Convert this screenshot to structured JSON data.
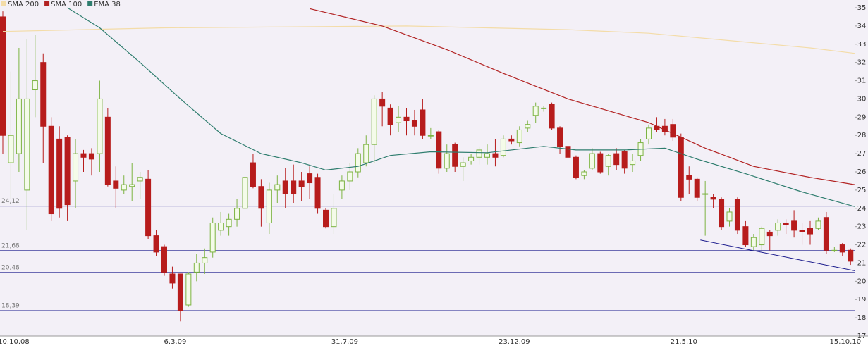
{
  "chart_data": {
    "type": "candlestick",
    "categories": [
      null,
      "10.10.08",
      null,
      null,
      null,
      null,
      null,
      null,
      null,
      null,
      null,
      null,
      null,
      null,
      null,
      null,
      null,
      null,
      null,
      null,
      null,
      "6.3.09",
      null,
      null,
      null,
      null,
      null,
      null,
      null,
      null,
      null,
      null,
      null,
      null,
      null,
      null,
      null,
      null,
      null,
      null,
      null,
      null,
      "31.7.09",
      null,
      null,
      null,
      null,
      null,
      null,
      null,
      null,
      null,
      null,
      null,
      null,
      null,
      null,
      null,
      null,
      null,
      null,
      null,
      null,
      "23.12.09",
      null,
      null,
      null,
      null,
      null,
      null,
      null,
      null,
      null,
      null,
      null,
      null,
      null,
      null,
      null,
      null,
      null,
      null,
      null,
      null,
      "21.5.10",
      null,
      null,
      null,
      null,
      null,
      null,
      null,
      null,
      null,
      null,
      null,
      null,
      null,
      null,
      null,
      null,
      null,
      null,
      null,
      "15.10.10",
      null
    ],
    "open": [
      34.5,
      26.5,
      27.0,
      25.0,
      30.5,
      32.0,
      28.5,
      27.8,
      27.9,
      25.5,
      27.0,
      27.0,
      27.0,
      29.0,
      25.5,
      25.0,
      25.2,
      25.5,
      25.6,
      22.5,
      21.9,
      20.4,
      20.4,
      18.7,
      20.5,
      21.0,
      21.6,
      22.8,
      23.0,
      23.4,
      24.0,
      26.5,
      25.2,
      23.2,
      25.0,
      25.5,
      25.5,
      25.5,
      25.9,
      25.7,
      23.9,
      23.0,
      25.0,
      25.5,
      26.0,
      26.5,
      27.5,
      30.0,
      29.5,
      28.7,
      29.0,
      28.8,
      29.4,
      28.0,
      28.2,
      26.2,
      27.5,
      26.3,
      26.6,
      26.8,
      26.8,
      27.0,
      26.9,
      27.8,
      27.6,
      28.4,
      29.1,
      29.5,
      29.7,
      28.4,
      27.4,
      26.8,
      25.8,
      26.2,
      27.0,
      26.3,
      27.0,
      27.1,
      26.4,
      26.9,
      27.8,
      28.5,
      28.5,
      28.6,
      27.9,
      25.8,
      25.6,
      24.8,
      24.6,
      24.5,
      23.3,
      24.5,
      23.0,
      21.9,
      22.0,
      22.7,
      22.8,
      23.2,
      23.3,
      22.8,
      22.9,
      22.9,
      23.5,
      21.7,
      22.0,
      21.7
    ],
    "high": [
      34.8,
      31.5,
      32.8,
      33.3,
      33.5,
      32.5,
      29.0,
      28.5,
      28.0,
      27.8,
      27.2,
      27.3,
      31.0,
      29.5,
      26.3,
      25.8,
      26.5,
      26.0,
      26.1,
      22.8,
      22.0,
      20.8,
      20.4,
      20.5,
      21.5,
      21.8,
      23.5,
      23.8,
      23.7,
      24.5,
      26.4,
      27.0,
      25.6,
      25.4,
      25.8,
      26.2,
      26.4,
      26.0,
      26.3,
      25.9,
      24.0,
      24.8,
      25.8,
      26.5,
      27.3,
      28.0,
      30.2,
      30.4,
      29.7,
      29.6,
      29.5,
      29.4,
      30.0,
      28.4,
      28.3,
      27.5,
      27.6,
      26.8,
      27.0,
      27.4,
      27.5,
      27.8,
      28.0,
      28.0,
      28.5,
      28.8,
      29.8,
      29.6,
      29.8,
      28.5,
      27.6,
      26.9,
      26.1,
      27.3,
      27.1,
      27.0,
      27.3,
      27.2,
      27.0,
      27.8,
      28.6,
      29.0,
      28.9,
      28.9,
      28.1,
      26.3,
      25.7,
      25.5,
      24.8,
      24.6,
      24.0,
      24.6,
      23.3,
      22.6,
      23.0,
      22.8,
      23.4,
      23.4,
      23.9,
      23.2,
      23.3,
      23.5,
      23.8,
      21.9,
      22.1,
      21.8
    ],
    "low": [
      27.0,
      24.5,
      26.0,
      22.8,
      29.0,
      26.5,
      23.3,
      23.5,
      23.3,
      24.0,
      26.0,
      25.8,
      26.0,
      25.2,
      24.0,
      24.8,
      24.4,
      24.5,
      22.3,
      21.4,
      20.3,
      19.6,
      17.8,
      18.6,
      20.0,
      20.4,
      21.3,
      22.5,
      22.5,
      23.0,
      23.5,
      25.1,
      23.0,
      22.6,
      24.3,
      24.0,
      24.3,
      24.4,
      24.5,
      23.7,
      22.9,
      22.6,
      24.5,
      25.0,
      25.7,
      26.3,
      26.5,
      28.5,
      28.0,
      28.2,
      28.0,
      28.0,
      27.8,
      27.8,
      25.9,
      26.0,
      26.0,
      25.5,
      26.4,
      26.4,
      26.4,
      26.3,
      26.8,
      27.5,
      27.4,
      28.2,
      28.7,
      29.3,
      28.3,
      27.0,
      26.5,
      25.6,
      25.6,
      26.1,
      25.9,
      25.8,
      26.1,
      25.9,
      26.0,
      26.6,
      27.5,
      28.2,
      28.0,
      27.7,
      24.4,
      24.8,
      24.4,
      22.5,
      24.0,
      22.8,
      23.0,
      22.6,
      21.9,
      21.7,
      21.7,
      21.7,
      22.5,
      22.6,
      22.4,
      22.0,
      22.0,
      22.8,
      21.5,
      21.6,
      21.4,
      20.9
    ],
    "close": [
      28.0,
      28.0,
      30.0,
      30.0,
      31.0,
      28.5,
      23.7,
      24.0,
      24.2,
      27.0,
      26.8,
      26.7,
      30.0,
      25.3,
      25.1,
      25.3,
      25.3,
      25.7,
      22.5,
      21.6,
      20.5,
      19.9,
      18.4,
      20.4,
      21.0,
      21.3,
      23.2,
      23.2,
      23.4,
      24.0,
      25.7,
      25.2,
      24.0,
      25.0,
      25.3,
      24.8,
      24.8,
      25.2,
      25.4,
      24.0,
      23.0,
      24.0,
      25.5,
      26.0,
      27.0,
      27.5,
      30.0,
      29.6,
      28.6,
      29.0,
      28.8,
      28.5,
      28.0,
      28.0,
      26.2,
      27.0,
      26.3,
      26.5,
      26.8,
      27.2,
      27.0,
      26.8,
      27.8,
      27.7,
      28.3,
      28.6,
      29.6,
      29.5,
      28.4,
      27.4,
      26.8,
      25.7,
      26.0,
      27.0,
      26.0,
      26.9,
      26.4,
      26.2,
      26.6,
      27.6,
      28.4,
      28.3,
      28.2,
      27.9,
      24.6,
      25.6,
      24.6,
      24.8,
      24.5,
      23.0,
      23.8,
      22.8,
      22.0,
      22.4,
      22.9,
      22.5,
      23.2,
      23.1,
      22.8,
      22.7,
      22.6,
      23.3,
      21.7,
      21.7,
      21.6,
      21.1
    ],
    "up_color": "#7cb342",
    "down_color": "#b71c1c",
    "series": [
      {
        "name": "SMA 200",
        "color": "#f3dca8",
        "x": [
          0,
          10,
          20,
          35,
          50,
          60,
          70,
          80,
          90,
          100,
          105.5
        ],
        "values": [
          33.7,
          33.8,
          33.9,
          33.95,
          34.0,
          33.9,
          33.8,
          33.6,
          33.2,
          32.8,
          32.5
        ]
      },
      {
        "name": "SMA 100",
        "color": "#b22222",
        "x": [
          38,
          47,
          55,
          62,
          70,
          80,
          87,
          93,
          100,
          105.5
        ],
        "values": [
          34.95,
          34.0,
          32.7,
          31.4,
          30.0,
          28.7,
          27.3,
          26.3,
          25.7,
          25.3
        ]
      },
      {
        "name": "EMA 38",
        "color": "#2e7d6e",
        "x": [
          8,
          12,
          17,
          22,
          27,
          32,
          37,
          40,
          44,
          48,
          53,
          60,
          65,
          67,
          71,
          77,
          82,
          86,
          92,
          99,
          105.5
        ],
        "values": [
          35.0,
          33.9,
          32.0,
          30.0,
          28.1,
          27.0,
          26.5,
          26.1,
          26.3,
          26.9,
          27.1,
          27.05,
          27.3,
          27.4,
          27.2,
          27.2,
          27.3,
          26.7,
          25.9,
          24.9,
          24.1
        ]
      }
    ],
    "levels": [
      {
        "value": 24.12,
        "label": "24,12"
      },
      {
        "value": 21.68,
        "label": "21,68"
      },
      {
        "value": 20.48,
        "label": "20,48"
      },
      {
        "value": 18.39,
        "label": "18,39"
      }
    ],
    "trend_line": {
      "x": [
        86.4,
        106.6
      ],
      "values": [
        22.26,
        20.48
      ]
    },
    "level_color": "#1a1a8c",
    "ylim": [
      17,
      35
    ],
    "yticks": [
      17,
      18,
      19,
      20,
      21,
      22,
      23,
      24,
      25,
      26,
      27,
      28,
      29,
      30,
      31,
      32,
      33,
      34,
      35
    ]
  }
}
